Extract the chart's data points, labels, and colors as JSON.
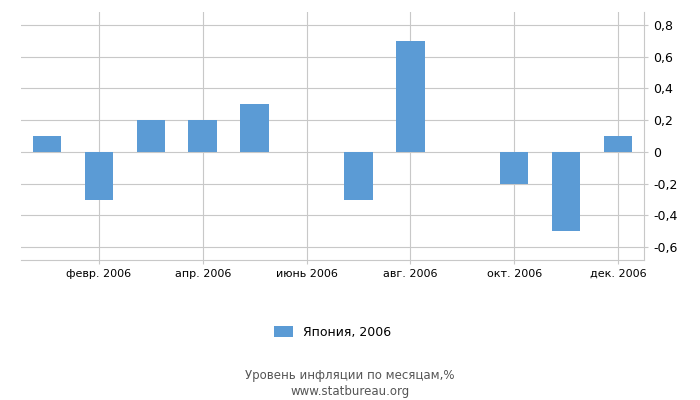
{
  "months": [
    1,
    2,
    3,
    4,
    5,
    6,
    7,
    8,
    9,
    10,
    11,
    12
  ],
  "values": [
    0.1,
    -0.3,
    0.2,
    0.2,
    0.3,
    0.0,
    -0.3,
    0.7,
    0.0,
    -0.2,
    -0.5,
    0.1
  ],
  "bar_color": "#5b9bd5",
  "ylim": [
    -0.68,
    0.88
  ],
  "yticks": [
    -0.6,
    -0.4,
    -0.2,
    0.0,
    0.2,
    0.4,
    0.6,
    0.8
  ],
  "ytick_labels": [
    "-0,6",
    "-0,4",
    "-0,2",
    "0",
    "0,2",
    "0,4",
    "0,6",
    "0,8"
  ],
  "xtick_positions": [
    2,
    4,
    6,
    8,
    10,
    12
  ],
  "xtick_labels": [
    "февр. 2006",
    "апр. 2006",
    "июнь 2006",
    "авг. 2006",
    "окт. 2006",
    "дек. 2006"
  ],
  "legend_label": "Япония, 2006",
  "subtitle": "Уровень инфляции по месяцам,%",
  "website": "www.statbureau.org",
  "background_color": "#ffffff",
  "grid_color": "#c8c8c8",
  "bar_width": 0.55
}
